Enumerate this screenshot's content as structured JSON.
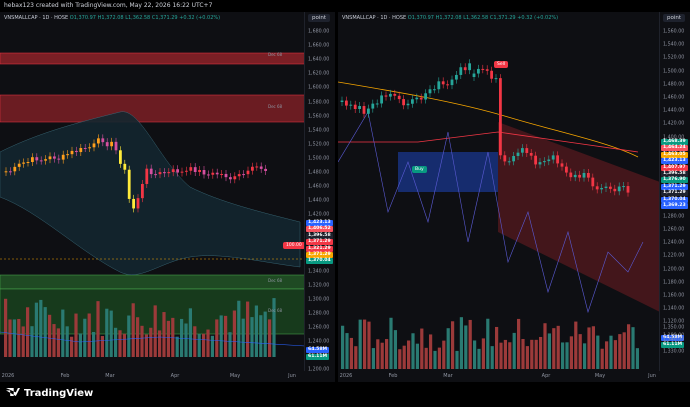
{
  "header": {
    "title": "hebax123 created with TradingView.com, May 22, 2026 16:22 UTC+7"
  },
  "left": {
    "legend": {
      "symbol": "VNSMALLCAP · 1D · HOSE",
      "o": "O1,370.97",
      "h": "H1,372.08",
      "l": "L1,362.58",
      "c": "C1,371.29",
      "chg": "+0.32 (+0.02%)"
    },
    "tag": "point",
    "ticks": [
      "1,680.00",
      "1,660.00",
      "1,640.00",
      "1,620.00",
      "1,600.00",
      "1,580.00",
      "1,560.00",
      "1,540.00",
      "1,520.00",
      "1,500.00",
      "1,480.00",
      "1,460.00",
      "1,440.00",
      "1,420.00",
      "1,400.00",
      "1,380.00",
      "1,360.00",
      "1,340.00",
      "1,320.00",
      "1,300.00",
      "1,280.00",
      "1,260.00",
      "1,240.00",
      "1,220.00",
      "1,200.00"
    ],
    "price_labels": [
      {
        "text": "1,423.13",
        "color": "#2962ff"
      },
      {
        "text": "1,406.52",
        "color": "#f7525f"
      },
      {
        "text": "1,396.58",
        "color": "#1e222d"
      },
      {
        "text": "1,371.29",
        "color": "#f23645"
      },
      {
        "text": "1,321.29",
        "color": "#f23645"
      },
      {
        "text": "1,371.29",
        "color": "#f7a600"
      },
      {
        "text": "1,370.04",
        "color": "#089981"
      }
    ],
    "callout": "100.00",
    "vol_labels": [
      {
        "text": "64.58M",
        "color": "#2962ff"
      },
      {
        "text": "61.11M",
        "color": "#089981"
      }
    ],
    "time_axis": [
      "2026",
      "Feb",
      "Mar",
      "Apr",
      "May",
      "Jun"
    ],
    "zone_notes": [
      "Dec 68",
      "Dec 68",
      "Dec 68",
      "Dec 68"
    ]
  },
  "right": {
    "legend": {
      "symbol": "VNSMALLCAP · 1D · HOSE",
      "o": "O1,370.97",
      "h": "H1,372.08",
      "l": "L1,362.58",
      "c": "C1,371.29",
      "chg": "+0.32 (+0.02%)"
    },
    "tag": "point",
    "ticks": [
      "1,560.00",
      "1,540.00",
      "1,520.00",
      "1,500.00",
      "1,480.00",
      "1,460.00",
      "1,440.00",
      "1,420.00",
      "1,400.00",
      "1,380.00",
      "1,360.00",
      "1,340.00",
      "1,320.00",
      "1,300.00",
      "1,280.00",
      "1,260.00",
      "1,240.00",
      "1,220.00",
      "1,200.00",
      "1,180.00",
      "1,160.00",
      "1,140.00",
      "1,120.00",
      "1,100.00"
    ],
    "price_labels": [
      {
        "text": "1,468.39",
        "color": "#089981"
      },
      {
        "text": "1,464.24",
        "color": "#f7525f"
      },
      {
        "text": "1,463.05",
        "color": "#f7a600"
      },
      {
        "text": "1,423.13",
        "color": "#2962ff"
      },
      {
        "text": "1,407.97",
        "color": "#f23645"
      },
      {
        "text": "1,396.58",
        "color": "#1e222d"
      },
      {
        "text": "1,376.90",
        "color": "#089981"
      },
      {
        "text": "1,371.29",
        "color": "#2962ff"
      },
      {
        "text": "1,371.29",
        "color": "#1e222d"
      },
      {
        "text": "1,370.04",
        "color": "#2962ff"
      },
      {
        "text": "1,369.23",
        "color": "#2962ff"
      }
    ],
    "vol_labels": [
      {
        "text": "64.58M",
        "color": "#2962ff"
      },
      {
        "text": "61.11M",
        "color": "#089981"
      }
    ],
    "bottom_ticks": [
      "1,350.00",
      "1,340.00",
      "1,330.00"
    ],
    "sell_label": "Sell",
    "buy_label": "Buy",
    "time_axis": [
      "2026",
      "Feb",
      "Mar",
      "Apr",
      "May",
      "Jun"
    ]
  },
  "footer": {
    "brand": "TradingView"
  }
}
